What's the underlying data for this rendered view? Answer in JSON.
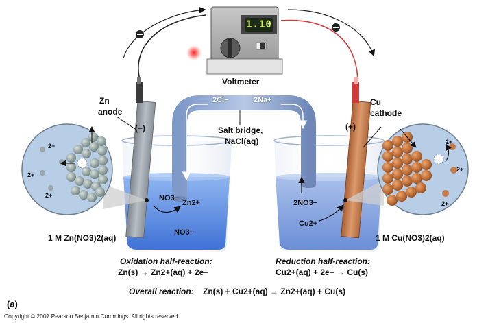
{
  "voltmeter": {
    "label": "Voltmeter",
    "reading": "1.10"
  },
  "electrodes": {
    "anode": {
      "line1": "Zn",
      "line2": "anode",
      "sign": "(−)"
    },
    "cathode": {
      "line1": "Cu",
      "line2": "cathode",
      "sign": "(+)"
    }
  },
  "salt_bridge": {
    "label_line1": "Salt bridge,",
    "label_line2": "NaCl(aq)",
    "anion": "2Cl−",
    "cation": "2Na+"
  },
  "left_beaker": {
    "ions": [
      "NO3−",
      "Zn2+",
      "NO3−"
    ],
    "solution": "1 M Zn(NO3)2(aq)"
  },
  "right_beaker": {
    "ions": [
      "2NO3−",
      "Cu2+"
    ],
    "solution": "1 M Cu(NO3)2(aq)"
  },
  "left_zoom": {
    "ion_charge": "2+"
  },
  "right_zoom": {
    "ion_charge": "2+"
  },
  "oxidation": {
    "title": "Oxidation half-reaction:",
    "equation": "Zn(s) → Zn2+(aq) + 2e−"
  },
  "reduction": {
    "title": "Reduction half-reaction:",
    "equation": "Cu2+(aq) + 2e− → Cu(s)"
  },
  "overall": {
    "title": "Overall reaction:",
    "equation": "Zn(s) + Cu2+(aq) → Zn2+(aq) + Cu(s)"
  },
  "panel_label": "(a)",
  "copyright": "Copyright © 2007 Pearson Benjamin Cummings. All rights reserved.",
  "colors": {
    "solution_blue": "#5e8fe0",
    "zinc": "#9aa0a6",
    "copper": "#c47a4a",
    "bridge": "#8fa9d6",
    "wire_red": "#d23b3b"
  }
}
